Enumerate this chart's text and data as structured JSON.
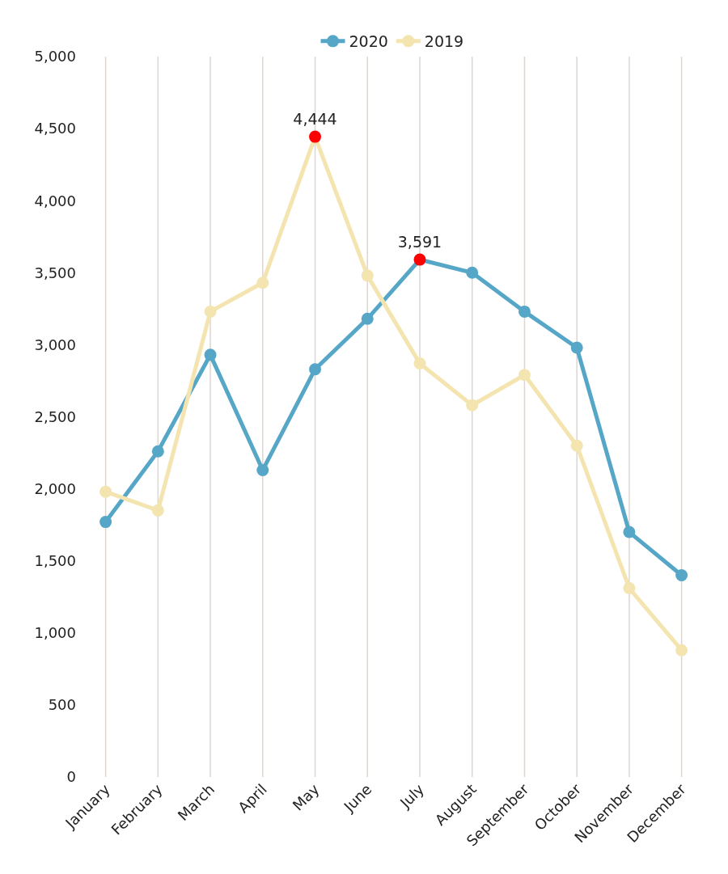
{
  "chart_data": {
    "type": "line",
    "categories": [
      "January",
      "February",
      "March",
      "April",
      "May",
      "June",
      "July",
      "August",
      "September",
      "October",
      "November",
      "December"
    ],
    "series": [
      {
        "name": "2020",
        "color": "#56a7c7",
        "values": [
          1770,
          2260,
          2930,
          2130,
          2830,
          3180,
          3591,
          3500,
          3230,
          2980,
          1700,
          1400
        ],
        "colors": [
          "#56a7c7",
          "#56a7c7",
          "#56a7c7",
          "#56a7c7",
          "#56a7c7",
          "#56a7c7",
          "#ff0000",
          "#56a7c7",
          "#56a7c7",
          "#56a7c7",
          "#56a7c7",
          "#56a7c7"
        ],
        "value_labels": [
          null,
          null,
          null,
          null,
          null,
          null,
          "3,591",
          null,
          null,
          null,
          null,
          null
        ]
      },
      {
        "name": "2019",
        "color": "#f3e4b0",
        "values": [
          1980,
          1850,
          3230,
          3430,
          4444,
          3480,
          2870,
          2580,
          2790,
          2300,
          1310,
          880
        ],
        "colors": [
          "#f3e4b0",
          "#f3e4b0",
          "#f3e4b0",
          "#f3e4b0",
          "#ff0000",
          "#f3e4b0",
          "#f3e4b0",
          "#f3e4b0",
          "#f3e4b0",
          "#f3e4b0",
          "#f3e4b0",
          "#f3e4b0"
        ],
        "value_labels": [
          null,
          null,
          null,
          null,
          "4,444",
          null,
          null,
          null,
          null,
          null,
          null,
          null
        ]
      }
    ],
    "ylim": [
      0,
      5000
    ],
    "yticks": [
      {
        "value": 0,
        "label": "0"
      },
      {
        "value": 500,
        "label": "500"
      },
      {
        "value": 1000,
        "label": "1,000"
      },
      {
        "value": 1500,
        "label": "1,500"
      },
      {
        "value": 2000,
        "label": "2,000"
      },
      {
        "value": 2500,
        "label": "2,500"
      },
      {
        "value": 3000,
        "label": "3,000"
      },
      {
        "value": 3500,
        "label": "3,500"
      },
      {
        "value": 4000,
        "label": "4,000"
      },
      {
        "value": 4500,
        "label": "4,500"
      },
      {
        "value": 5000,
        "label": "5,000"
      }
    ],
    "grid": "x",
    "legend": "top",
    "marker": "circle",
    "line_style": "solid"
  }
}
